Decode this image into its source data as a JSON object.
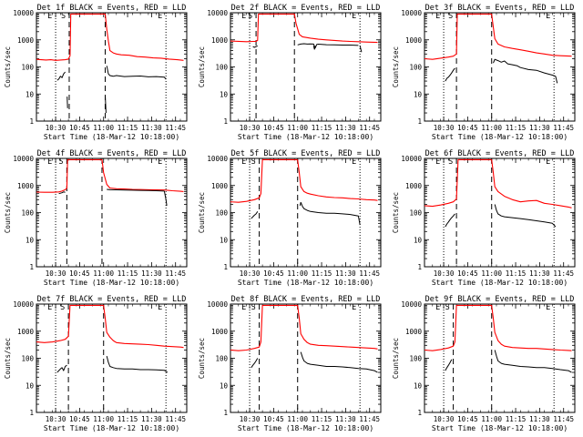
{
  "chart_data": {
    "type": "line",
    "y_scale": "log",
    "ylim": [
      1,
      10000
    ],
    "y_ticks": [
      {
        "value": 1,
        "label": "1"
      },
      {
        "value": 10,
        "label": "10"
      },
      {
        "value": 100,
        "label": "100"
      },
      {
        "value": 1000,
        "label": "1000"
      },
      {
        "value": 10000,
        "label": "10000"
      }
    ],
    "ylabel": "Counts/sec",
    "xlabel": "Start Time (18-Mar-12 10:18:00)",
    "x_units": "minutes after 10:18:00",
    "xlim": [
      0,
      94
    ],
    "x_ticks": [
      {
        "value": 12,
        "label": "10:30"
      },
      {
        "value": 27,
        "label": "10:45"
      },
      {
        "value": 42,
        "label": "11:00"
      },
      {
        "value": 57,
        "label": "11:15"
      },
      {
        "value": 72,
        "label": "11:30"
      },
      {
        "value": 87,
        "label": "11:45"
      }
    ],
    "legend": "BLACK = Events, RED = LLD",
    "marker_letters": {
      "E": "E",
      "S": "S"
    },
    "colors": {
      "events": "#000000",
      "lld": "#ff0000",
      "axes": "#000000"
    },
    "panels": [
      {
        "title": "Det 1f BLACK = Events, RED = LLD",
        "markers": {
          "eclipse_end": 12,
          "saa_entry": 20.5,
          "saa_exit": 43,
          "eclipse_start": 81
        },
        "lld": {
          "x": [
            0,
            3,
            6,
            9,
            12,
            15,
            18,
            20,
            21,
            21.5,
            43,
            44,
            45,
            46,
            48,
            50,
            53,
            58,
            63,
            68,
            73,
            78,
            83,
            88,
            92
          ],
          "y": [
            190,
            185,
            180,
            185,
            175,
            180,
            185,
            195,
            260,
            9000,
            9000,
            2500,
            900,
            400,
            330,
            300,
            280,
            270,
            240,
            230,
            215,
            210,
            195,
            185,
            175
          ]
        },
        "events": [
          {
            "x": [
              13,
              14,
              15,
              16,
              17,
              18
            ],
            "y": [
              32,
              36,
              45,
              40,
              55,
              65
            ]
          },
          {
            "x": [
              19.2,
              19.5
            ],
            "y": [
              8,
              3
            ]
          },
          {
            "x": [
              44,
              45,
              46,
              48,
              50,
              55,
              60,
              65,
              70,
              75,
              80,
              81
            ],
            "y": [
              110,
              55,
              48,
              45,
              48,
              44,
              45,
              46,
              43,
              44,
              42,
              35
            ]
          },
          {
            "x": [
              43,
              43.5
            ],
            "y": [
              9,
              2
            ]
          }
        ]
      },
      {
        "title": "Det 2f BLACK = Events, RED = LLD",
        "markers": {
          "eclipse_end": 12,
          "saa_entry": 16,
          "saa_exit": 40,
          "eclipse_start": 81
        },
        "lld": {
          "x": [
            0,
            5,
            10,
            14,
            16,
            17,
            17.5,
            40,
            41,
            43,
            45,
            50,
            55,
            60,
            65,
            70,
            75,
            80,
            85,
            92
          ],
          "y": [
            900,
            880,
            850,
            870,
            880,
            950,
            9000,
            9000,
            4000,
            1600,
            1300,
            1150,
            1050,
            1000,
            950,
            900,
            870,
            850,
            830,
            800
          ]
        },
        "events": [
          {
            "x": [
              14,
              15,
              16,
              17
            ],
            "y": [
              560,
              530,
              560,
              600
            ]
          },
          {
            "x": [
              42,
              44,
              46,
              48,
              50,
              52,
              53,
              54,
              55,
              57,
              60,
              65,
              70,
              75,
              80
            ],
            "y": [
              650,
              700,
              720,
              700,
              710,
              700,
              500,
              680,
              690,
              680,
              660,
              650,
              640,
              640,
              620
            ]
          },
          {
            "x": [
              52,
              52.5,
              53.5
            ],
            "y": [
              600,
              450,
              600
            ]
          },
          {
            "x": [
              81,
              82
            ],
            "y": [
              600,
              350
            ]
          }
        ]
      },
      {
        "title": "Det 3f BLACK = Events, RED = LLD",
        "markers": {
          "eclipse_end": 12,
          "saa_entry": 20,
          "saa_exit": 42,
          "eclipse_start": 81
        },
        "lld": {
          "x": [
            0,
            5,
            10,
            15,
            18,
            20,
            20.5,
            42,
            43,
            44,
            46,
            50,
            55,
            60,
            65,
            70,
            75,
            80,
            85,
            92
          ],
          "y": [
            200,
            190,
            210,
            230,
            250,
            300,
            9000,
            9000,
            3000,
            1100,
            700,
            550,
            480,
            430,
            380,
            330,
            300,
            270,
            260,
            250
          ]
        },
        "events": [
          {
            "x": [
              13,
              14,
              15,
              16,
              17,
              18,
              19
            ],
            "y": [
              30,
              38,
              42,
              50,
              60,
              75,
              90
            ]
          },
          {
            "x": [
              43,
              44,
              46,
              48,
              50,
              52,
              55,
              58,
              60,
              65,
              70,
              75,
              80,
              82,
              83
            ],
            "y": [
              140,
              190,
              170,
              150,
              165,
              130,
              120,
              110,
              95,
              80,
              75,
              60,
              50,
              45,
              25
            ]
          }
        ]
      },
      {
        "title": "Det 4f BLACK = Events, RED = LLD",
        "markers": {
          "eclipse_end": 12,
          "saa_entry": 19,
          "saa_exit": 41,
          "eclipse_start": 81
        },
        "lld": {
          "x": [
            0,
            5,
            10,
            14,
            16,
            18,
            19,
            19.5,
            41,
            42,
            44,
            46,
            50,
            55,
            60,
            65,
            70,
            75,
            80,
            85,
            90,
            92
          ],
          "y": [
            570,
            560,
            560,
            580,
            620,
            700,
            800,
            9000,
            9000,
            3000,
            1100,
            800,
            760,
            740,
            720,
            710,
            700,
            690,
            680,
            640,
            610,
            600
          ]
        },
        "events": [
          {
            "x": [
              14,
              15,
              16,
              17,
              18
            ],
            "y": [
              500,
              520,
              540,
              580,
              560
            ]
          },
          {
            "x": [
              44,
              46,
              50,
              55,
              60,
              65,
              70,
              75,
              80
            ],
            "y": [
              720,
              700,
              690,
              680,
              670,
              660,
              650,
              640,
              620
            ]
          },
          {
            "x": [
              80,
              81,
              81.5
            ],
            "y": [
              620,
              300,
              180
            ]
          }
        ]
      },
      {
        "title": "Det 5f BLACK = Events, RED = LLD",
        "markers": {
          "eclipse_end": 12,
          "saa_entry": 18,
          "saa_exit": 42,
          "eclipse_start": 81
        },
        "lld": {
          "x": [
            0,
            5,
            10,
            15,
            18,
            19,
            20,
            42,
            43,
            44,
            46,
            48,
            50,
            55,
            60,
            65,
            70,
            75,
            80,
            85,
            90,
            92
          ],
          "y": [
            250,
            240,
            260,
            300,
            350,
            500,
            9000,
            9000,
            3000,
            900,
            600,
            520,
            480,
            420,
            380,
            360,
            350,
            330,
            320,
            300,
            290,
            280
          ]
        },
        "events": [
          {
            "x": [
              13,
              14,
              15,
              16,
              17
            ],
            "y": [
              60,
              70,
              80,
              90,
              110
            ]
          },
          {
            "x": [
              44,
              45,
              46,
              48,
              50,
              55,
              60,
              65,
              70,
              75,
              80,
              81
            ],
            "y": [
              240,
              170,
              140,
              120,
              110,
              100,
              95,
              95,
              90,
              85,
              75,
              35
            ]
          },
          {
            "x": [
              43.5,
              44
            ],
            "y": [
              180,
              240
            ]
          }
        ]
      },
      {
        "title": "Det 6f BLACK = Events, RED = LLD",
        "markers": {
          "eclipse_end": 12,
          "saa_entry": 20,
          "saa_exit": 42,
          "eclipse_start": 81
        },
        "lld": {
          "x": [
            0,
            5,
            10,
            15,
            18,
            20,
            21,
            42,
            43,
            44,
            46,
            50,
            55,
            60,
            65,
            70,
            75,
            80,
            85,
            90,
            92
          ],
          "y": [
            180,
            170,
            190,
            220,
            250,
            320,
            9000,
            9000,
            3000,
            900,
            600,
            400,
            300,
            250,
            270,
            280,
            220,
            200,
            180,
            160,
            150
          ]
        },
        "events": [
          {
            "x": [
              13,
              14,
              15,
              16,
              17,
              18,
              19
            ],
            "y": [
              30,
              38,
              45,
              55,
              65,
              75,
              90
            ]
          },
          {
            "x": [
              44,
              45,
              46,
              48,
              50,
              55,
              60,
              65,
              70,
              75,
              80,
              82
            ],
            "y": [
              200,
              120,
              90,
              75,
              70,
              65,
              60,
              55,
              50,
              45,
              40,
              30
            ]
          }
        ]
      },
      {
        "title": "Det 7f BLACK = Events, RED = LLD",
        "markers": {
          "eclipse_end": 12,
          "saa_entry": 20,
          "saa_exit": 42,
          "eclipse_start": 81
        },
        "lld": {
          "x": [
            0,
            5,
            10,
            15,
            18,
            20,
            21,
            42,
            43,
            44,
            46,
            48,
            50,
            55,
            60,
            65,
            70,
            75,
            80,
            85,
            90,
            92
          ],
          "y": [
            400,
            380,
            400,
            450,
            500,
            650,
            9000,
            9000,
            3000,
            900,
            600,
            450,
            380,
            350,
            340,
            330,
            320,
            300,
            280,
            270,
            260,
            250
          ]
        },
        "events": [
          {
            "x": [
              13,
              14,
              15,
              16,
              17,
              18,
              19
            ],
            "y": [
              30,
              35,
              40,
              45,
              35,
              50,
              55
            ]
          },
          {
            "x": [
              44,
              45,
              46,
              48,
              50,
              55,
              60,
              65,
              70,
              75,
              80,
              82
            ],
            "y": [
              120,
              70,
              50,
              45,
              42,
              40,
              40,
              38,
              38,
              37,
              36,
              30
            ]
          }
        ]
      },
      {
        "title": "Det 8f BLACK = Events, RED = LLD",
        "markers": {
          "eclipse_end": 12,
          "saa_entry": 18,
          "saa_exit": 42,
          "eclipse_start": 81
        },
        "lld": {
          "x": [
            0,
            5,
            10,
            15,
            18,
            19,
            20,
            42,
            43,
            44,
            46,
            48,
            50,
            55,
            60,
            65,
            70,
            75,
            80,
            85,
            90,
            92
          ],
          "y": [
            200,
            190,
            200,
            230,
            260,
            400,
            9000,
            9000,
            3000,
            800,
            500,
            380,
            330,
            300,
            290,
            280,
            270,
            260,
            250,
            240,
            230,
            220
          ]
        },
        "events": [
          {
            "x": [
              13,
              14,
              15,
              16,
              17
            ],
            "y": [
              45,
              55,
              65,
              80,
              100
            ]
          },
          {
            "x": [
              44,
              45,
              46,
              48,
              50,
              55,
              60,
              65,
              70,
              75,
              80,
              85,
              90,
              92
            ],
            "y": [
              170,
              110,
              80,
              65,
              60,
              55,
              50,
              50,
              48,
              45,
              42,
              40,
              35,
              30
            ]
          }
        ]
      },
      {
        "title": "Det 9f BLACK = Events, RED = LLD",
        "markers": {
          "eclipse_end": 12,
          "saa_entry": 18,
          "saa_exit": 42,
          "eclipse_start": 81
        },
        "lld": {
          "x": [
            0,
            5,
            10,
            15,
            18,
            19,
            20,
            42,
            43,
            44,
            46,
            48,
            50,
            55,
            60,
            65,
            70,
            75,
            80,
            85,
            90,
            92
          ],
          "y": [
            200,
            190,
            210,
            240,
            280,
            400,
            9000,
            9000,
            3000,
            900,
            450,
            330,
            280,
            250,
            240,
            230,
            230,
            220,
            210,
            200,
            195,
            190
          ]
        },
        "events": [
          {
            "x": [
              13,
              14,
              15,
              16,
              17
            ],
            "y": [
              35,
              45,
              55,
              70,
              90
            ]
          },
          {
            "x": [
              44,
              45,
              46,
              48,
              50,
              55,
              60,
              65,
              70,
              75,
              80,
              85,
              90,
              92
            ],
            "y": [
              200,
              120,
              80,
              65,
              60,
              55,
              50,
              48,
              45,
              45,
              42,
              38,
              35,
              30
            ]
          }
        ]
      }
    ]
  }
}
